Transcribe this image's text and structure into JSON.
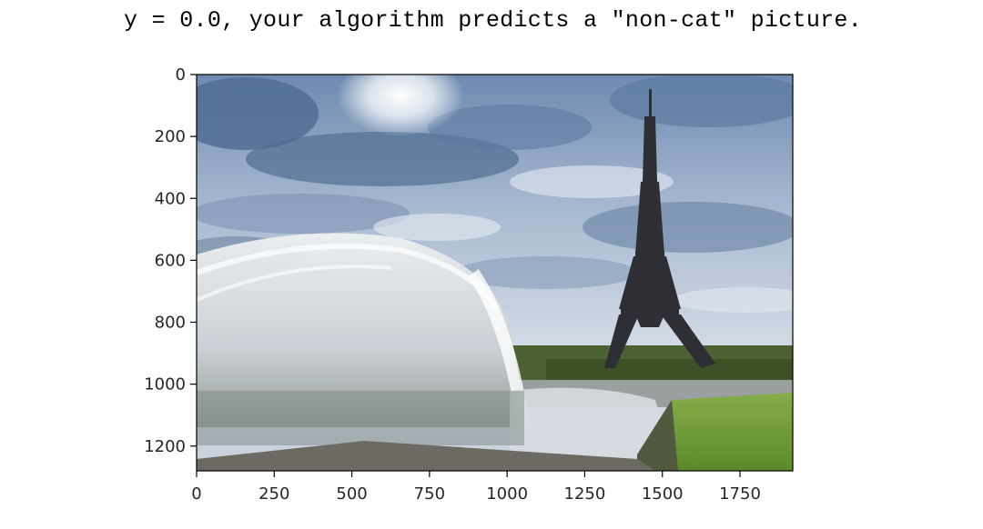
{
  "output": {
    "text": "y = 0.0, your algorithm predicts a \"non-cat\" picture."
  },
  "chart_data": {
    "type": "image",
    "title": "",
    "xlabel": "",
    "ylabel": "",
    "xlim": [
      0,
      1920
    ],
    "ylim": [
      1280,
      0
    ],
    "xticks": [
      0,
      250,
      500,
      750,
      1000,
      1250,
      1500,
      1750
    ],
    "yticks": [
      0,
      200,
      400,
      600,
      800,
      1000,
      1200
    ],
    "grid": false,
    "legend": "none"
  },
  "colors": {
    "sky_top": "#5d7aa0",
    "sky_mid": "#c9d4e2",
    "cloud_dark": "#3f5878",
    "tower": "#2a2a2e",
    "water": "#dfe4e8",
    "grass": "#6f9a3a",
    "trees": "#3f5a2a",
    "ground": "#6e7066",
    "axis": "#000000"
  }
}
